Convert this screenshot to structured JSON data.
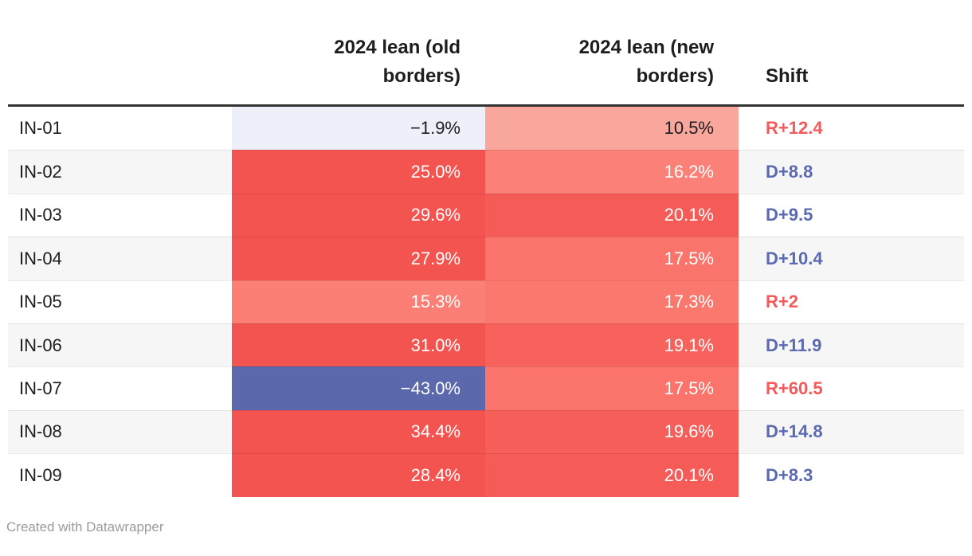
{
  "chart_data": {
    "type": "table",
    "title": "",
    "columns": [
      "",
      "2024 lean (old borders)",
      "2024 lean (new borders)",
      "Shift"
    ],
    "rows": [
      {
        "district": "IN-01",
        "old_lean_pct": -1.9,
        "new_lean_pct": 10.5,
        "shift": "R+12.4"
      },
      {
        "district": "IN-02",
        "old_lean_pct": 25.0,
        "new_lean_pct": 16.2,
        "shift": "D+8.8"
      },
      {
        "district": "IN-03",
        "old_lean_pct": 29.6,
        "new_lean_pct": 20.1,
        "shift": "D+9.5"
      },
      {
        "district": "IN-04",
        "old_lean_pct": 27.9,
        "new_lean_pct": 17.5,
        "shift": "D+10.4"
      },
      {
        "district": "IN-05",
        "old_lean_pct": 15.3,
        "new_lean_pct": 17.3,
        "shift": "R+2"
      },
      {
        "district": "IN-06",
        "old_lean_pct": 31.0,
        "new_lean_pct": 19.1,
        "shift": "D+11.9"
      },
      {
        "district": "IN-07",
        "old_lean_pct": -43.0,
        "new_lean_pct": 17.5,
        "shift": "R+60.5"
      },
      {
        "district": "IN-08",
        "old_lean_pct": 34.4,
        "new_lean_pct": 19.6,
        "shift": "D+14.8"
      },
      {
        "district": "IN-09",
        "old_lean_pct": 28.4,
        "new_lean_pct": 20.1,
        "shift": "D+8.3"
      }
    ],
    "layout_hints": "heatmap-colored lean cells: red = Republican lean, blue = Democratic lean; zebra-striped rows"
  },
  "header": {
    "col_district": "",
    "col_old": "2024 lean (old\nborders)",
    "col_new": "2024 lean (new\nborders)",
    "col_shift": "Shift"
  },
  "rows": [
    {
      "district": "IN-01",
      "old": "−1.9%",
      "old_bg": "#eef0f9",
      "old_fg": "#1d1d1d",
      "new": "10.5%",
      "new_bg": "#f9a69c",
      "new_fg": "#1d1d1d",
      "shift": "R+12.4",
      "shift_fg": "#f4595b"
    },
    {
      "district": "IN-02",
      "old": "25.0%",
      "old_bg": "#f4544f",
      "old_fg": "#ffffff",
      "new": "16.2%",
      "new_bg": "#fb8178",
      "new_fg": "#ffffff",
      "shift": "D+8.8",
      "shift_fg": "#5b6ab0"
    },
    {
      "district": "IN-03",
      "old": "29.6%",
      "old_bg": "#f4544f",
      "old_fg": "#ffffff",
      "new": "20.1%",
      "new_bg": "#f55b57",
      "new_fg": "#ffffff",
      "shift": "D+9.5",
      "shift_fg": "#5b6ab0"
    },
    {
      "district": "IN-04",
      "old": "27.9%",
      "old_bg": "#f4544f",
      "old_fg": "#ffffff",
      "new": "17.5%",
      "new_bg": "#fa746b",
      "new_fg": "#ffffff",
      "shift": "D+10.4",
      "shift_fg": "#5b6ab0"
    },
    {
      "district": "IN-05",
      "old": "15.3%",
      "old_bg": "#fb7f75",
      "old_fg": "#ffffff",
      "new": "17.3%",
      "new_bg": "#fb786e",
      "new_fg": "#ffffff",
      "shift": "R+2",
      "shift_fg": "#f4595b"
    },
    {
      "district": "IN-06",
      "old": "31.0%",
      "old_bg": "#f4544f",
      "old_fg": "#ffffff",
      "new": "19.1%",
      "new_bg": "#f7635c",
      "new_fg": "#ffffff",
      "shift": "D+11.9",
      "shift_fg": "#5b6ab0"
    },
    {
      "district": "IN-07",
      "old": "−43.0%",
      "old_bg": "#5b69ac",
      "old_fg": "#ffffff",
      "new": "17.5%",
      "new_bg": "#fa746b",
      "new_fg": "#ffffff",
      "shift": "R+60.5",
      "shift_fg": "#f4595b"
    },
    {
      "district": "IN-08",
      "old": "34.4%",
      "old_bg": "#f4544f",
      "old_fg": "#ffffff",
      "new": "19.6%",
      "new_bg": "#f65f59",
      "new_fg": "#ffffff",
      "shift": "D+14.8",
      "shift_fg": "#5b6ab0"
    },
    {
      "district": "IN-09",
      "old": "28.4%",
      "old_bg": "#f4544f",
      "old_fg": "#ffffff",
      "new": "20.1%",
      "new_bg": "#f55b57",
      "new_fg": "#ffffff",
      "shift": "D+8.3",
      "shift_fg": "#5b6ab0"
    }
  ],
  "footer": {
    "credit": "Created with Datawrapper"
  },
  "style": {
    "rule_color": "#333333",
    "stripe_bg": "#f6f6f6",
    "header_fg": "#1d1d1d",
    "body_fg": "#1d1d1d",
    "credit_fg": "#9b9b9b",
    "rep_color": "#f4595b",
    "dem_color": "#5b6ab0"
  }
}
